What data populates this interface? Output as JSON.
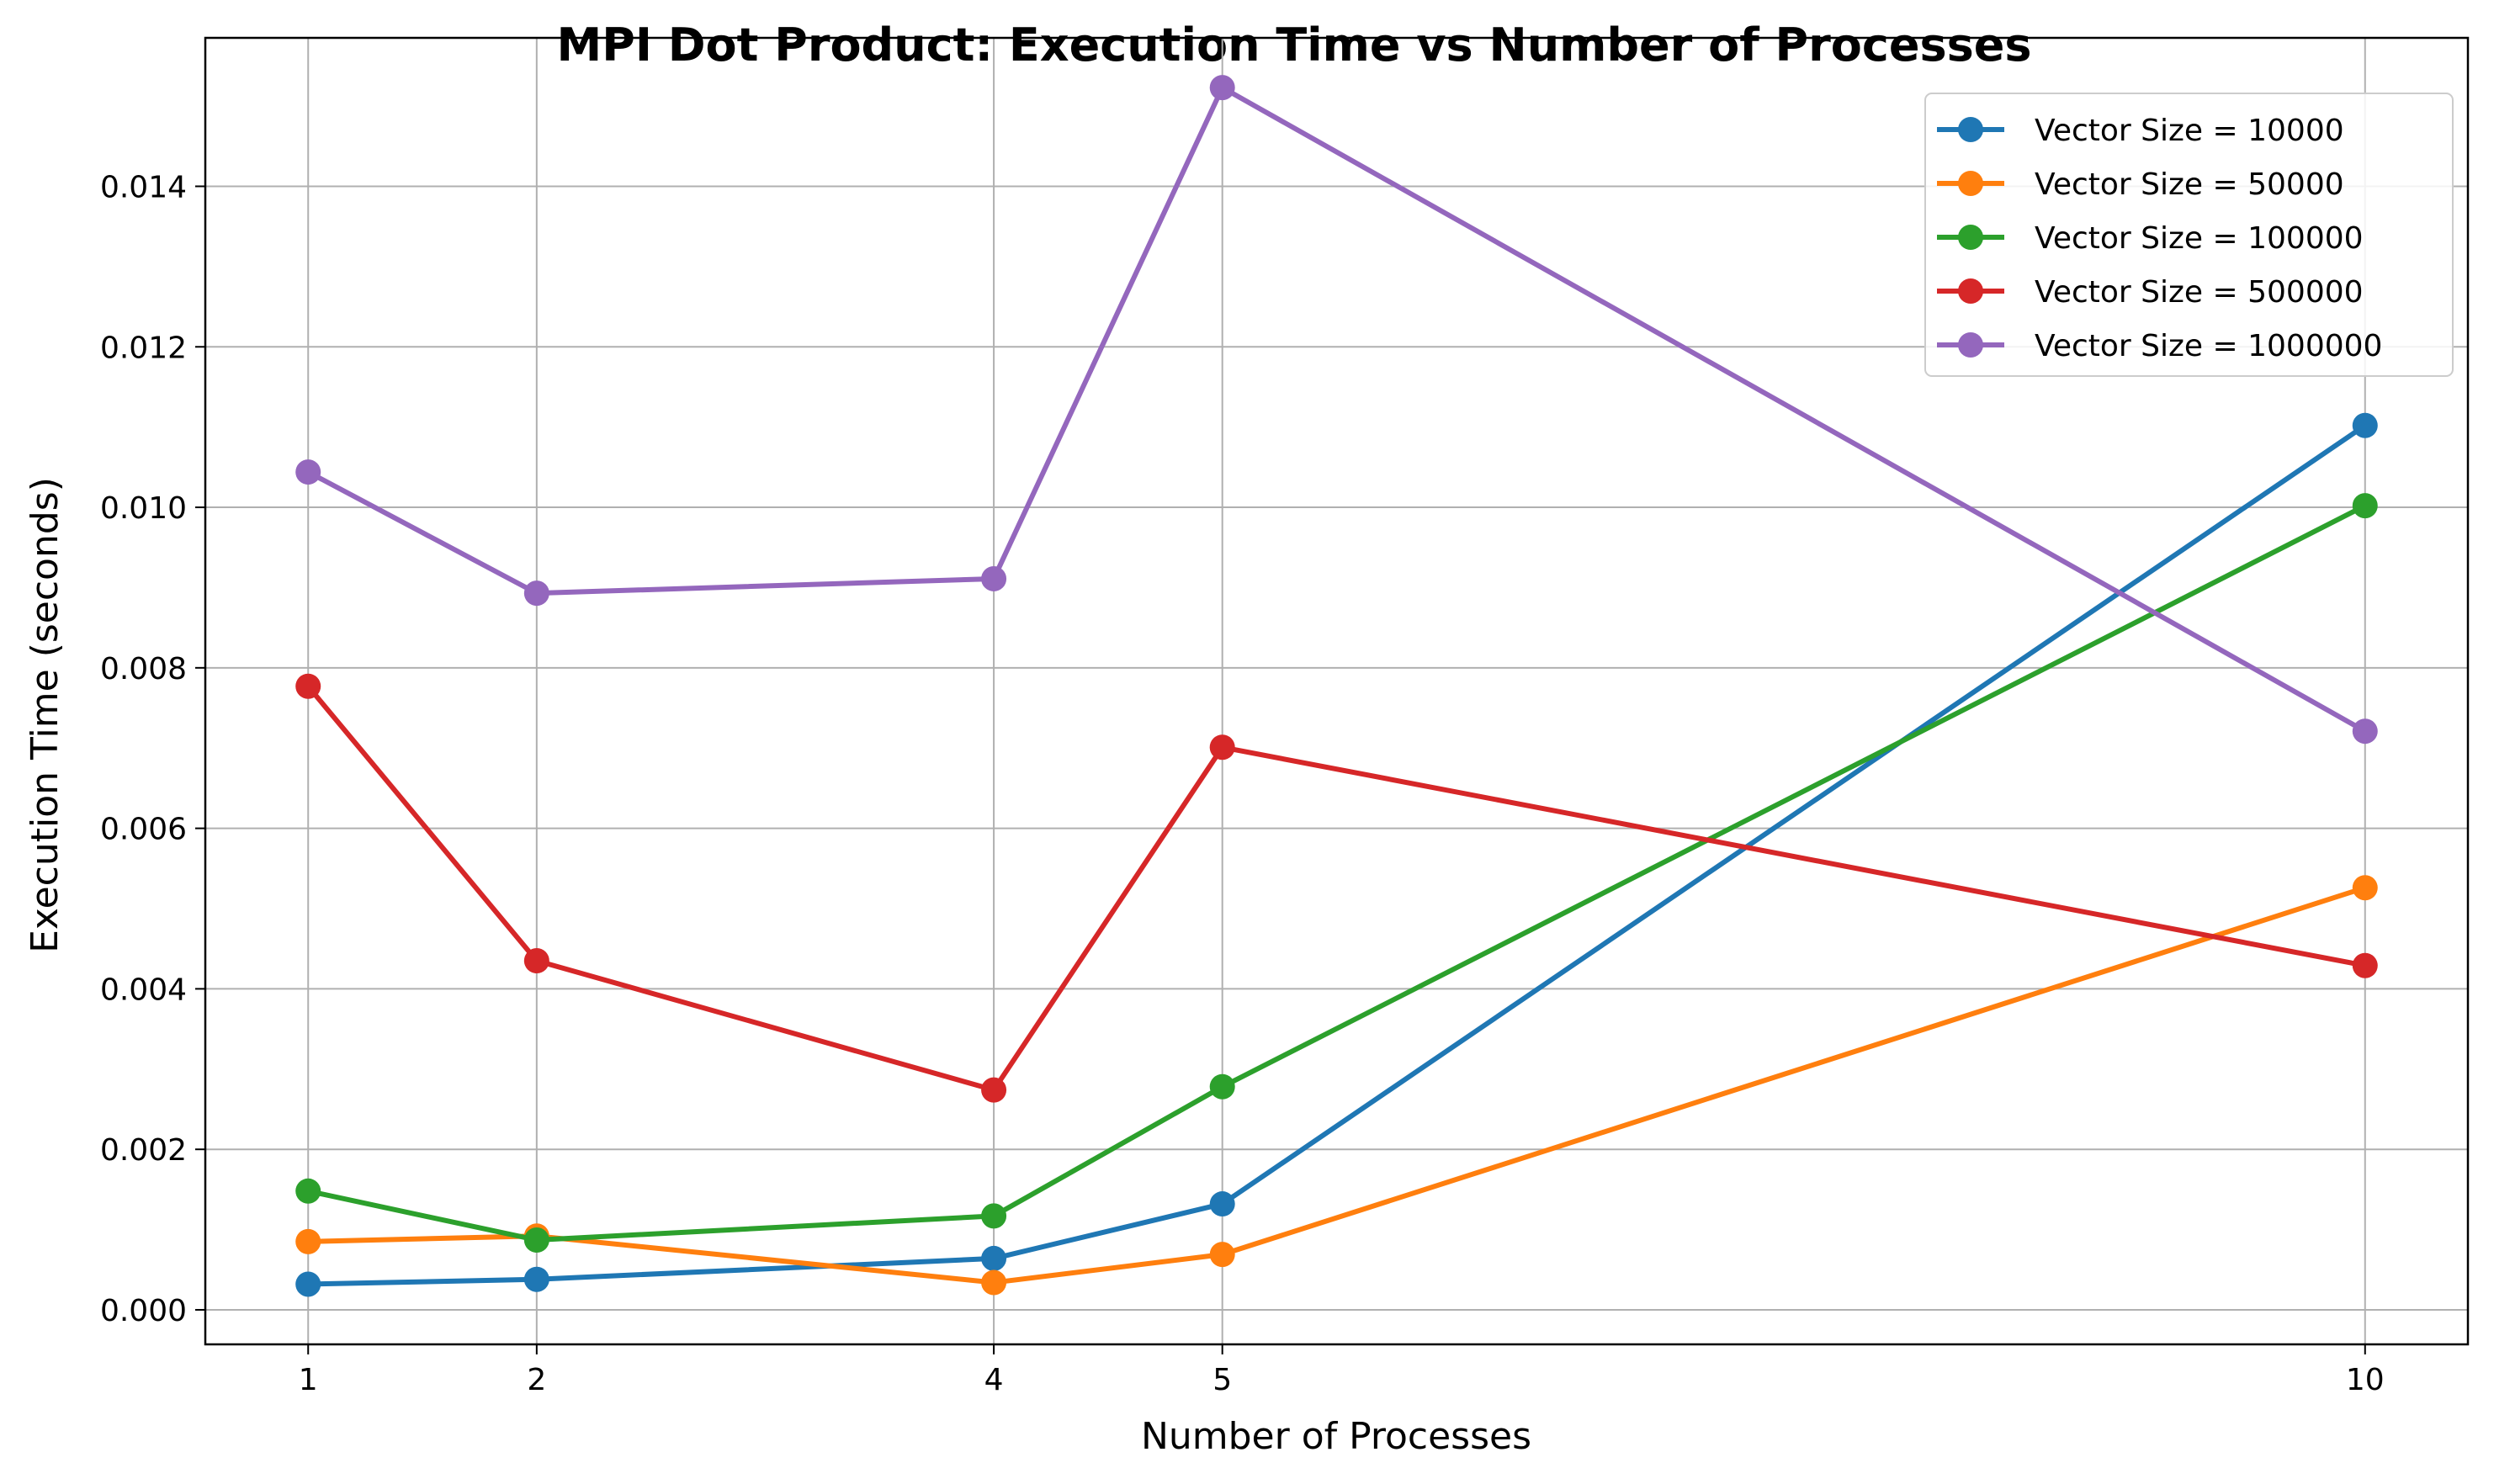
{
  "chart_data": {
    "type": "line",
    "title": "MPI Dot Product: Execution Time vs Number of Processes",
    "xlabel": "Number of Processes",
    "ylabel": "Execution Time (seconds)",
    "x": [
      1,
      2,
      4,
      5,
      10
    ],
    "x_tick_labels": [
      "1",
      "2",
      "4",
      "5",
      "10"
    ],
    "xlim": [
      0.55,
      10.45
    ],
    "ylim": [
      -0.00043,
      0.01585
    ],
    "y_ticks": [
      0.0,
      0.002,
      0.004,
      0.006,
      0.008,
      0.01,
      0.012,
      0.014
    ],
    "y_tick_labels": [
      "0.000",
      "0.002",
      "0.004",
      "0.006",
      "0.008",
      "0.010",
      "0.012",
      "0.014"
    ],
    "grid": true,
    "legend_position": "top-right",
    "series": [
      {
        "name": "Vector Size = 10000",
        "color": "#1f77b4",
        "values": [
          0.00032,
          0.00038,
          0.00064,
          0.00132,
          0.01102
        ]
      },
      {
        "name": "Vector Size = 50000",
        "color": "#ff7f0e",
        "values": [
          0.00085,
          0.00092,
          0.00034,
          0.00069,
          0.00526
        ]
      },
      {
        "name": "Vector Size = 100000",
        "color": "#2ca02c",
        "values": [
          0.00148,
          0.00087,
          0.00117,
          0.00278,
          0.01002
        ]
      },
      {
        "name": "Vector Size = 500000",
        "color": "#d62728",
        "values": [
          0.00777,
          0.00435,
          0.00274,
          0.00701,
          0.00429
        ]
      },
      {
        "name": "Vector Size = 1000000",
        "color": "#9467bd",
        "values": [
          0.01044,
          0.00893,
          0.00911,
          0.01523,
          0.00721
        ]
      }
    ]
  }
}
